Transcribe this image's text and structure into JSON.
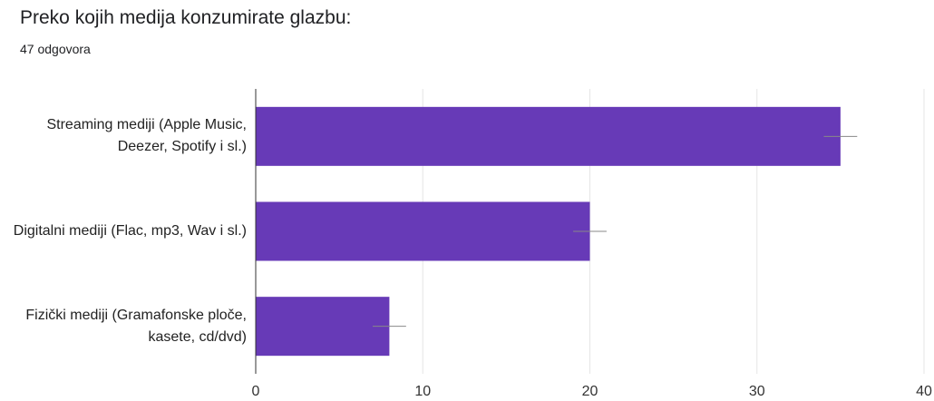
{
  "title": "Preko kojih medija konzumirate glazbu:",
  "subtitle": "47 odgovora",
  "chart_data": {
    "type": "bar",
    "orientation": "horizontal",
    "categories": [
      "Streaming mediji (Apple Music, Deezer, Spotify i sl.)",
      "Digitalni mediji (Flac, mp3, Wav i sl.)",
      "Fizički mediji (Gramafonske ploče, kasete, cd/dvd)"
    ],
    "values": [
      35,
      20,
      8
    ],
    "errors": [
      1,
      1,
      1
    ],
    "color": "#673ab7",
    "xlim": [
      0,
      40
    ],
    "xticks": [
      0,
      10,
      20,
      30,
      40
    ],
    "grid": true
  }
}
